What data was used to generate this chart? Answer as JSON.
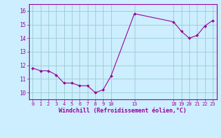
{
  "x": [
    0,
    1,
    2,
    3,
    4,
    5,
    6,
    7,
    8,
    9,
    10,
    13,
    18,
    19,
    20,
    21,
    22,
    23
  ],
  "y": [
    11.8,
    11.6,
    11.6,
    11.3,
    10.7,
    10.7,
    10.5,
    10.5,
    10.0,
    10.2,
    11.2,
    15.8,
    15.2,
    14.5,
    14.0,
    14.2,
    14.9,
    15.3
  ],
  "line_color": "#990099",
  "marker_color": "#990099",
  "bg_color": "#cceeff",
  "grid_color": "#99cccc",
  "xlabel": "Windchill (Refroidissement éolien,°C)",
  "xlabel_color": "#990099",
  "tick_color": "#990099",
  "ylim": [
    9.5,
    16.5
  ],
  "xlim": [
    -0.5,
    23.5
  ],
  "yticks": [
    10,
    11,
    12,
    13,
    14,
    15,
    16
  ],
  "xticks": [
    0,
    1,
    2,
    3,
    4,
    5,
    6,
    7,
    8,
    9,
    10,
    13,
    18,
    19,
    20,
    21,
    22,
    23
  ],
  "figsize": [
    3.2,
    2.0
  ],
  "dpi": 100
}
